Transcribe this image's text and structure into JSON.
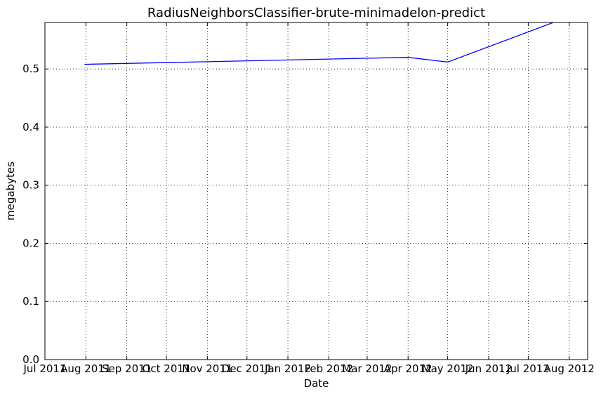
{
  "chart_data": {
    "type": "line",
    "title": "RadiusNeighborsClassifier-brute-minimadelon-predict",
    "xlabel": "Date",
    "ylabel": "megabytes",
    "xlim": [
      "2011-07-01",
      "2012-08-15"
    ],
    "ylim": [
      0,
      0.58
    ],
    "grid": true,
    "x_tick_labels": [
      "Jul 2011",
      "Aug 2011",
      "Sep 2011",
      "Oct 2011",
      "Nov 2011",
      "Dec 2011",
      "Jan 2012",
      "Feb 2012",
      "Mar 2012",
      "Apr 2012",
      "May 2012",
      "Jun 2012",
      "Jul 2012",
      "Aug 2012"
    ],
    "x_tick_dates": [
      "2011-07-01",
      "2011-08-01",
      "2011-09-01",
      "2011-10-01",
      "2011-11-01",
      "2011-12-01",
      "2012-01-01",
      "2012-02-01",
      "2012-03-01",
      "2012-04-01",
      "2012-05-01",
      "2012-06-01",
      "2012-07-01",
      "2012-08-01"
    ],
    "y_ticks": [
      0.0,
      0.1,
      0.2,
      0.3,
      0.4,
      0.5
    ],
    "y_tick_labels": [
      "0.0",
      "0.1",
      "0.2",
      "0.3",
      "0.4",
      "0.5"
    ],
    "series": [
      {
        "color": "#0000ff",
        "x": [
          "2011-07-31",
          "2012-04-01",
          "2012-05-01",
          "2012-07-20"
        ],
        "y": [
          0.508,
          0.52,
          0.512,
          0.58
        ]
      }
    ]
  }
}
